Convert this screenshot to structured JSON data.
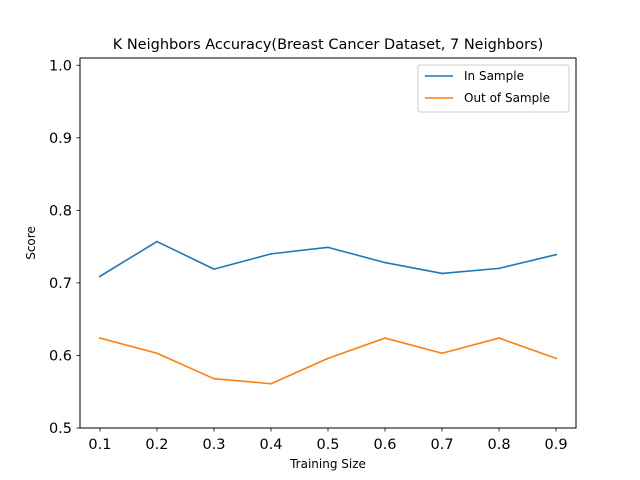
{
  "chart_data": {
    "type": "line",
    "title": "K Neighbors Accuracy(Breast Cancer Dataset, 7 Neighbors)",
    "xlabel": "Training Size",
    "ylabel": "Score",
    "xlim": [
      0.065,
      0.935
    ],
    "ylim": [
      0.5,
      1.01
    ],
    "x": [
      0.1,
      0.2,
      0.3,
      0.4,
      0.5,
      0.6,
      0.7,
      0.8,
      0.9
    ],
    "x_ticks": [
      "0.1",
      "0.2",
      "0.3",
      "0.4",
      "0.5",
      "0.6",
      "0.7",
      "0.8",
      "0.9"
    ],
    "y_ticks": [
      "0.5",
      "0.6",
      "0.7",
      "0.8",
      "0.9",
      "1.0"
    ],
    "legend_position": "top-right",
    "grid": false,
    "series": [
      {
        "name": "In Sample",
        "color": "#1f77b4",
        "values": [
          0.709,
          0.757,
          0.719,
          0.74,
          0.749,
          0.728,
          0.713,
          0.72,
          0.739
        ]
      },
      {
        "name": "Out of Sample",
        "color": "#ff7f0e",
        "values": [
          0.624,
          0.603,
          0.568,
          0.561,
          0.596,
          0.624,
          0.603,
          0.624,
          0.596
        ]
      }
    ]
  }
}
